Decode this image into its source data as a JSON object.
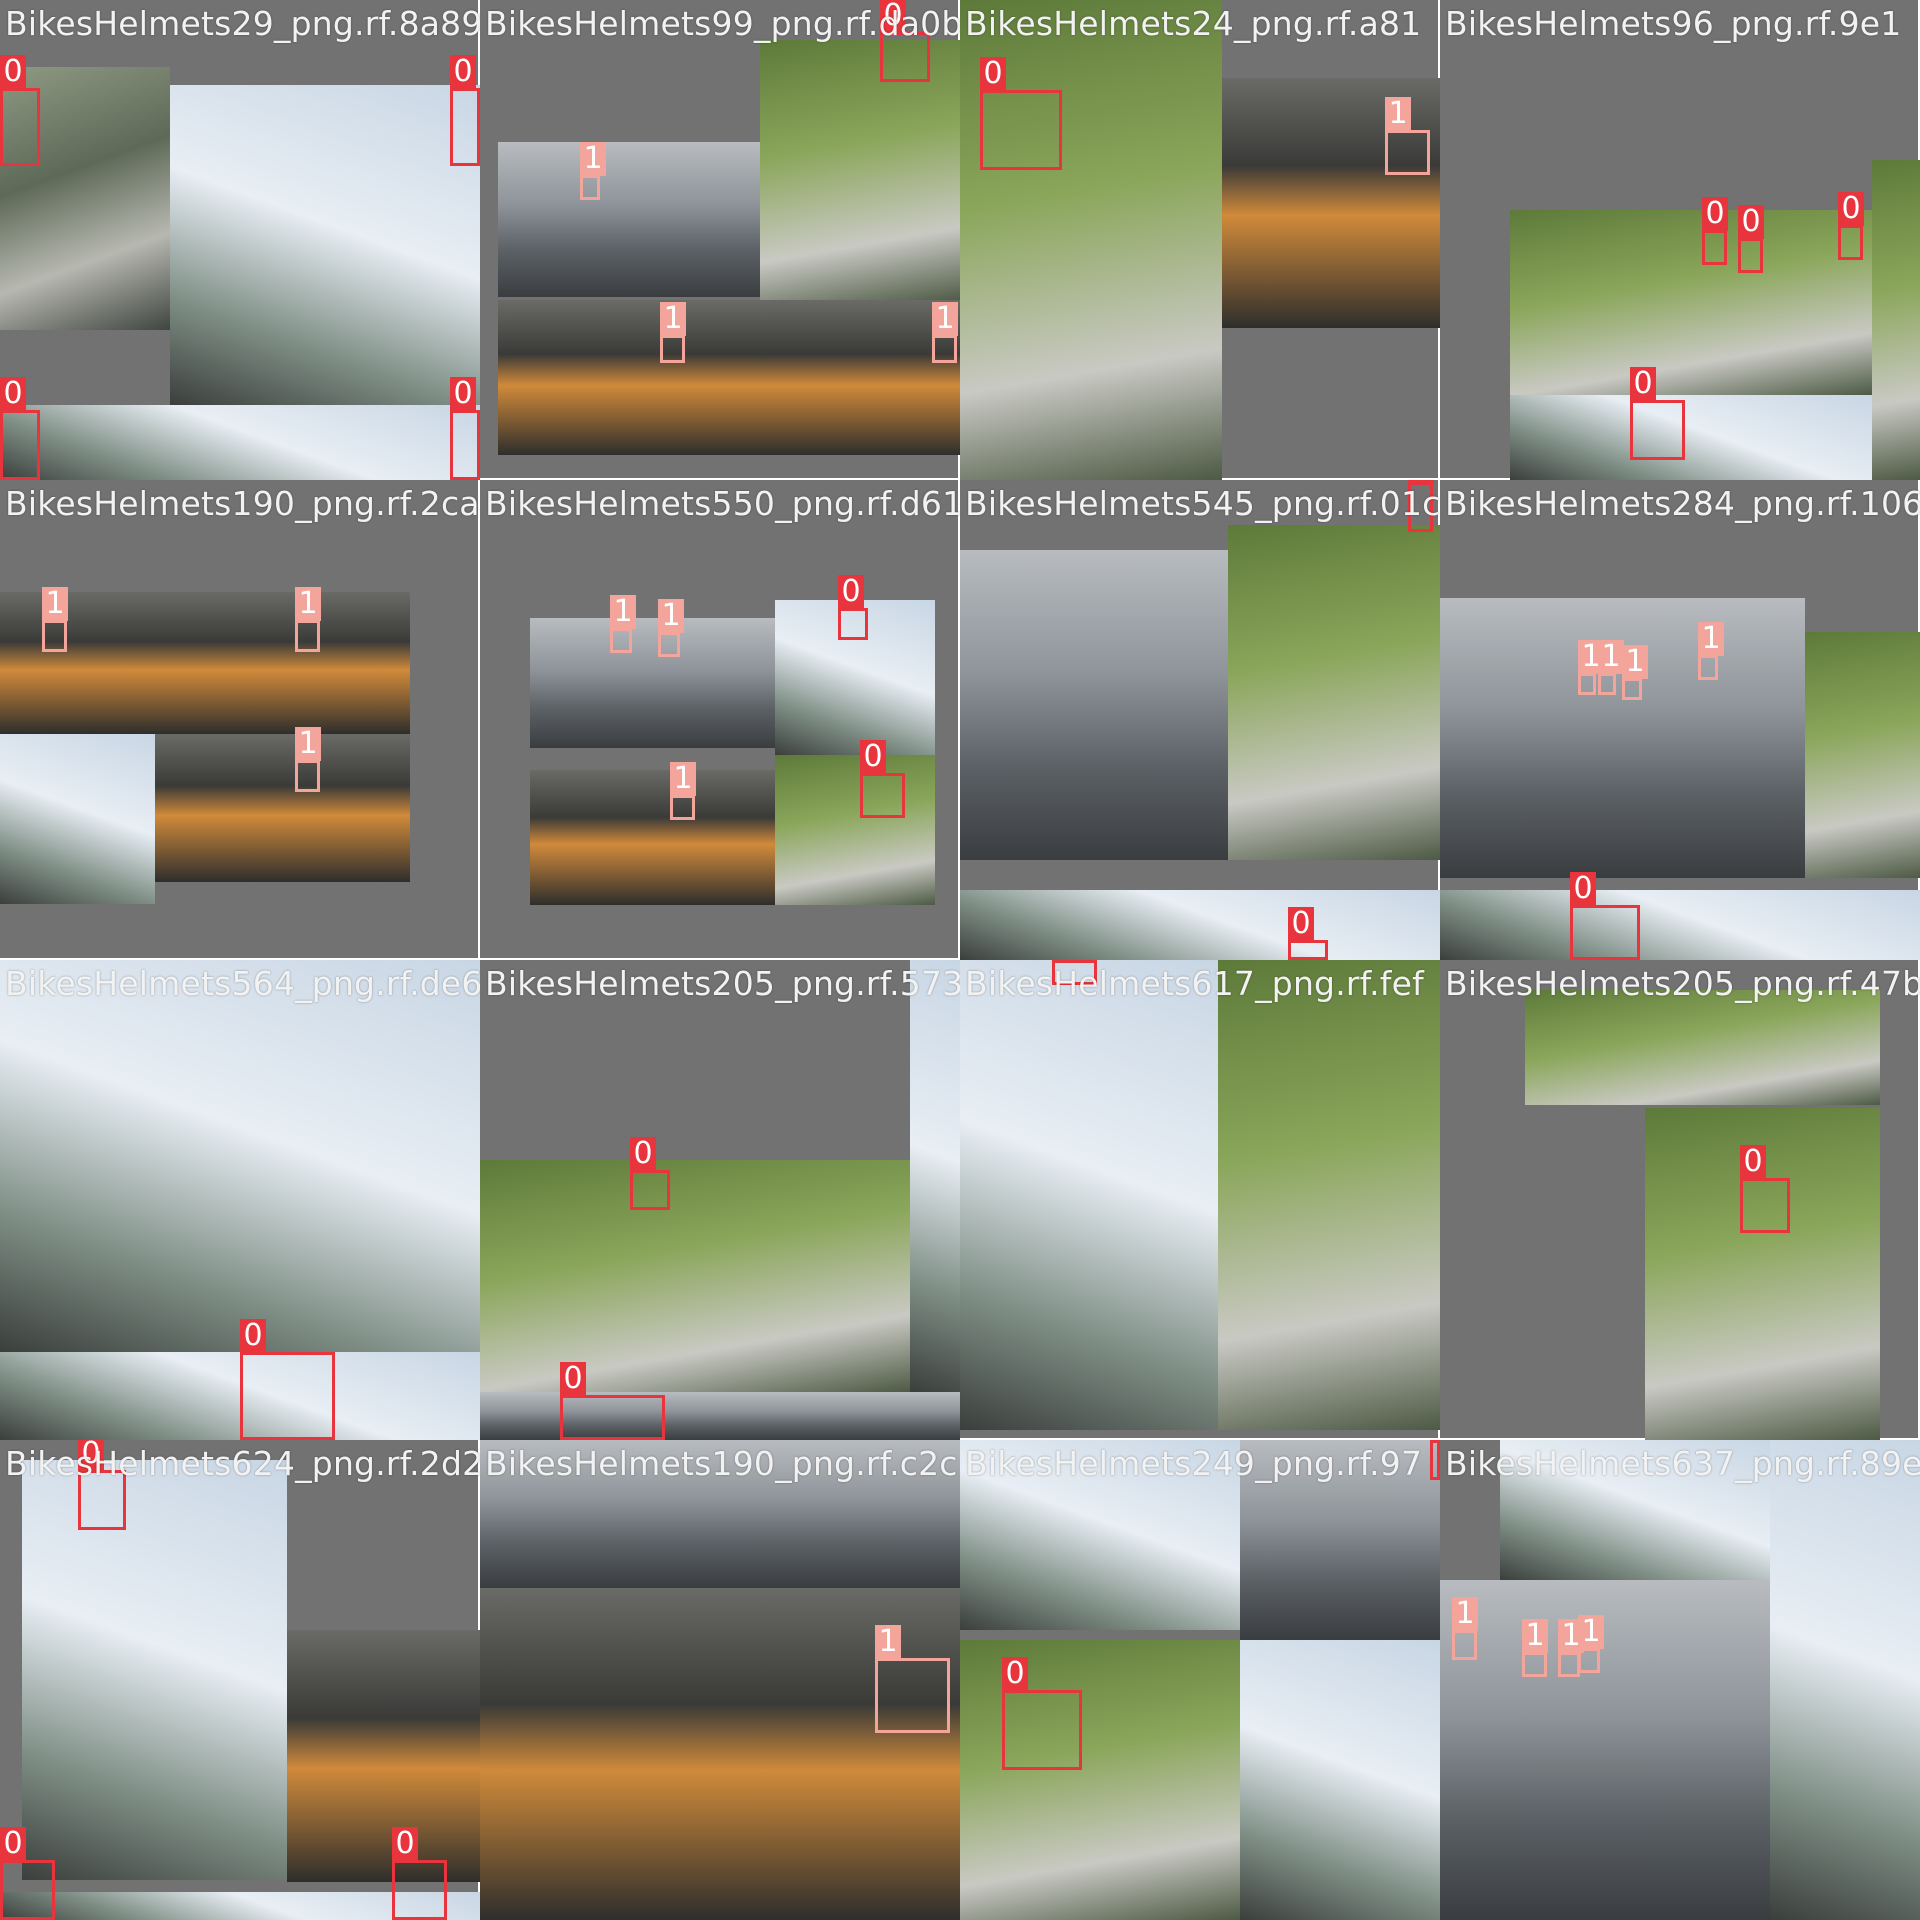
{
  "colors": {
    "class_0": "#e8343c",
    "class_1": "#f3a59c",
    "pad": "#727272"
  },
  "tiles": [
    {
      "title": "BikesHelmets29_png.rf.8a89",
      "labels": [
        "0",
        "0",
        "0",
        "0"
      ]
    },
    {
      "title": "BikesHelmets99_png.rf.da0b",
      "labels": [
        "0",
        "1",
        "1",
        "1"
      ]
    },
    {
      "title": "BikesHelmets24_png.rf.a81",
      "labels": [
        "0",
        "1"
      ]
    },
    {
      "title": "BikesHelmets96_png.rf.9e1",
      "labels": [
        "0",
        "0",
        "0",
        "0"
      ]
    },
    {
      "title": "BikesHelmets190_png.rf.2ca",
      "labels": [
        "1",
        "1",
        "1"
      ]
    },
    {
      "title": "BikesHelmets550_png.rf.d61",
      "labels": [
        "1",
        "1",
        "0",
        "1",
        "0"
      ]
    },
    {
      "title": "BikesHelmets545_png.rf.01c",
      "labels": [
        "0",
        "0"
      ]
    },
    {
      "title": "BikesHelmets284_png.rf.106",
      "labels": [
        "1",
        "1",
        "1",
        "1",
        "0"
      ]
    },
    {
      "title": "BikesHelmets564_png.rf.de6",
      "labels": [
        "0"
      ]
    },
    {
      "title": "BikesHelmets205_png.rf.573",
      "labels": [
        "0",
        "0"
      ]
    },
    {
      "title": "BikesHelmets617_png.rf.fef",
      "labels": [
        "0"
      ]
    },
    {
      "title": "BikesHelmets205_png.rf.47b",
      "labels": [
        "0"
      ]
    },
    {
      "title": "BikesHelmets624_png.rf.2d2",
      "labels": [
        "0",
        "0",
        "0"
      ]
    },
    {
      "title": "BikesHelmets190_png.rf.c2c",
      "labels": [
        "1"
      ]
    },
    {
      "title": "BikesHelmets249_png.rf.97",
      "labels": [
        "0",
        "0"
      ]
    },
    {
      "title": "BikesHelmets637_png.rf.89e",
      "labels": [
        "1",
        "1",
        "1",
        "1"
      ]
    }
  ]
}
